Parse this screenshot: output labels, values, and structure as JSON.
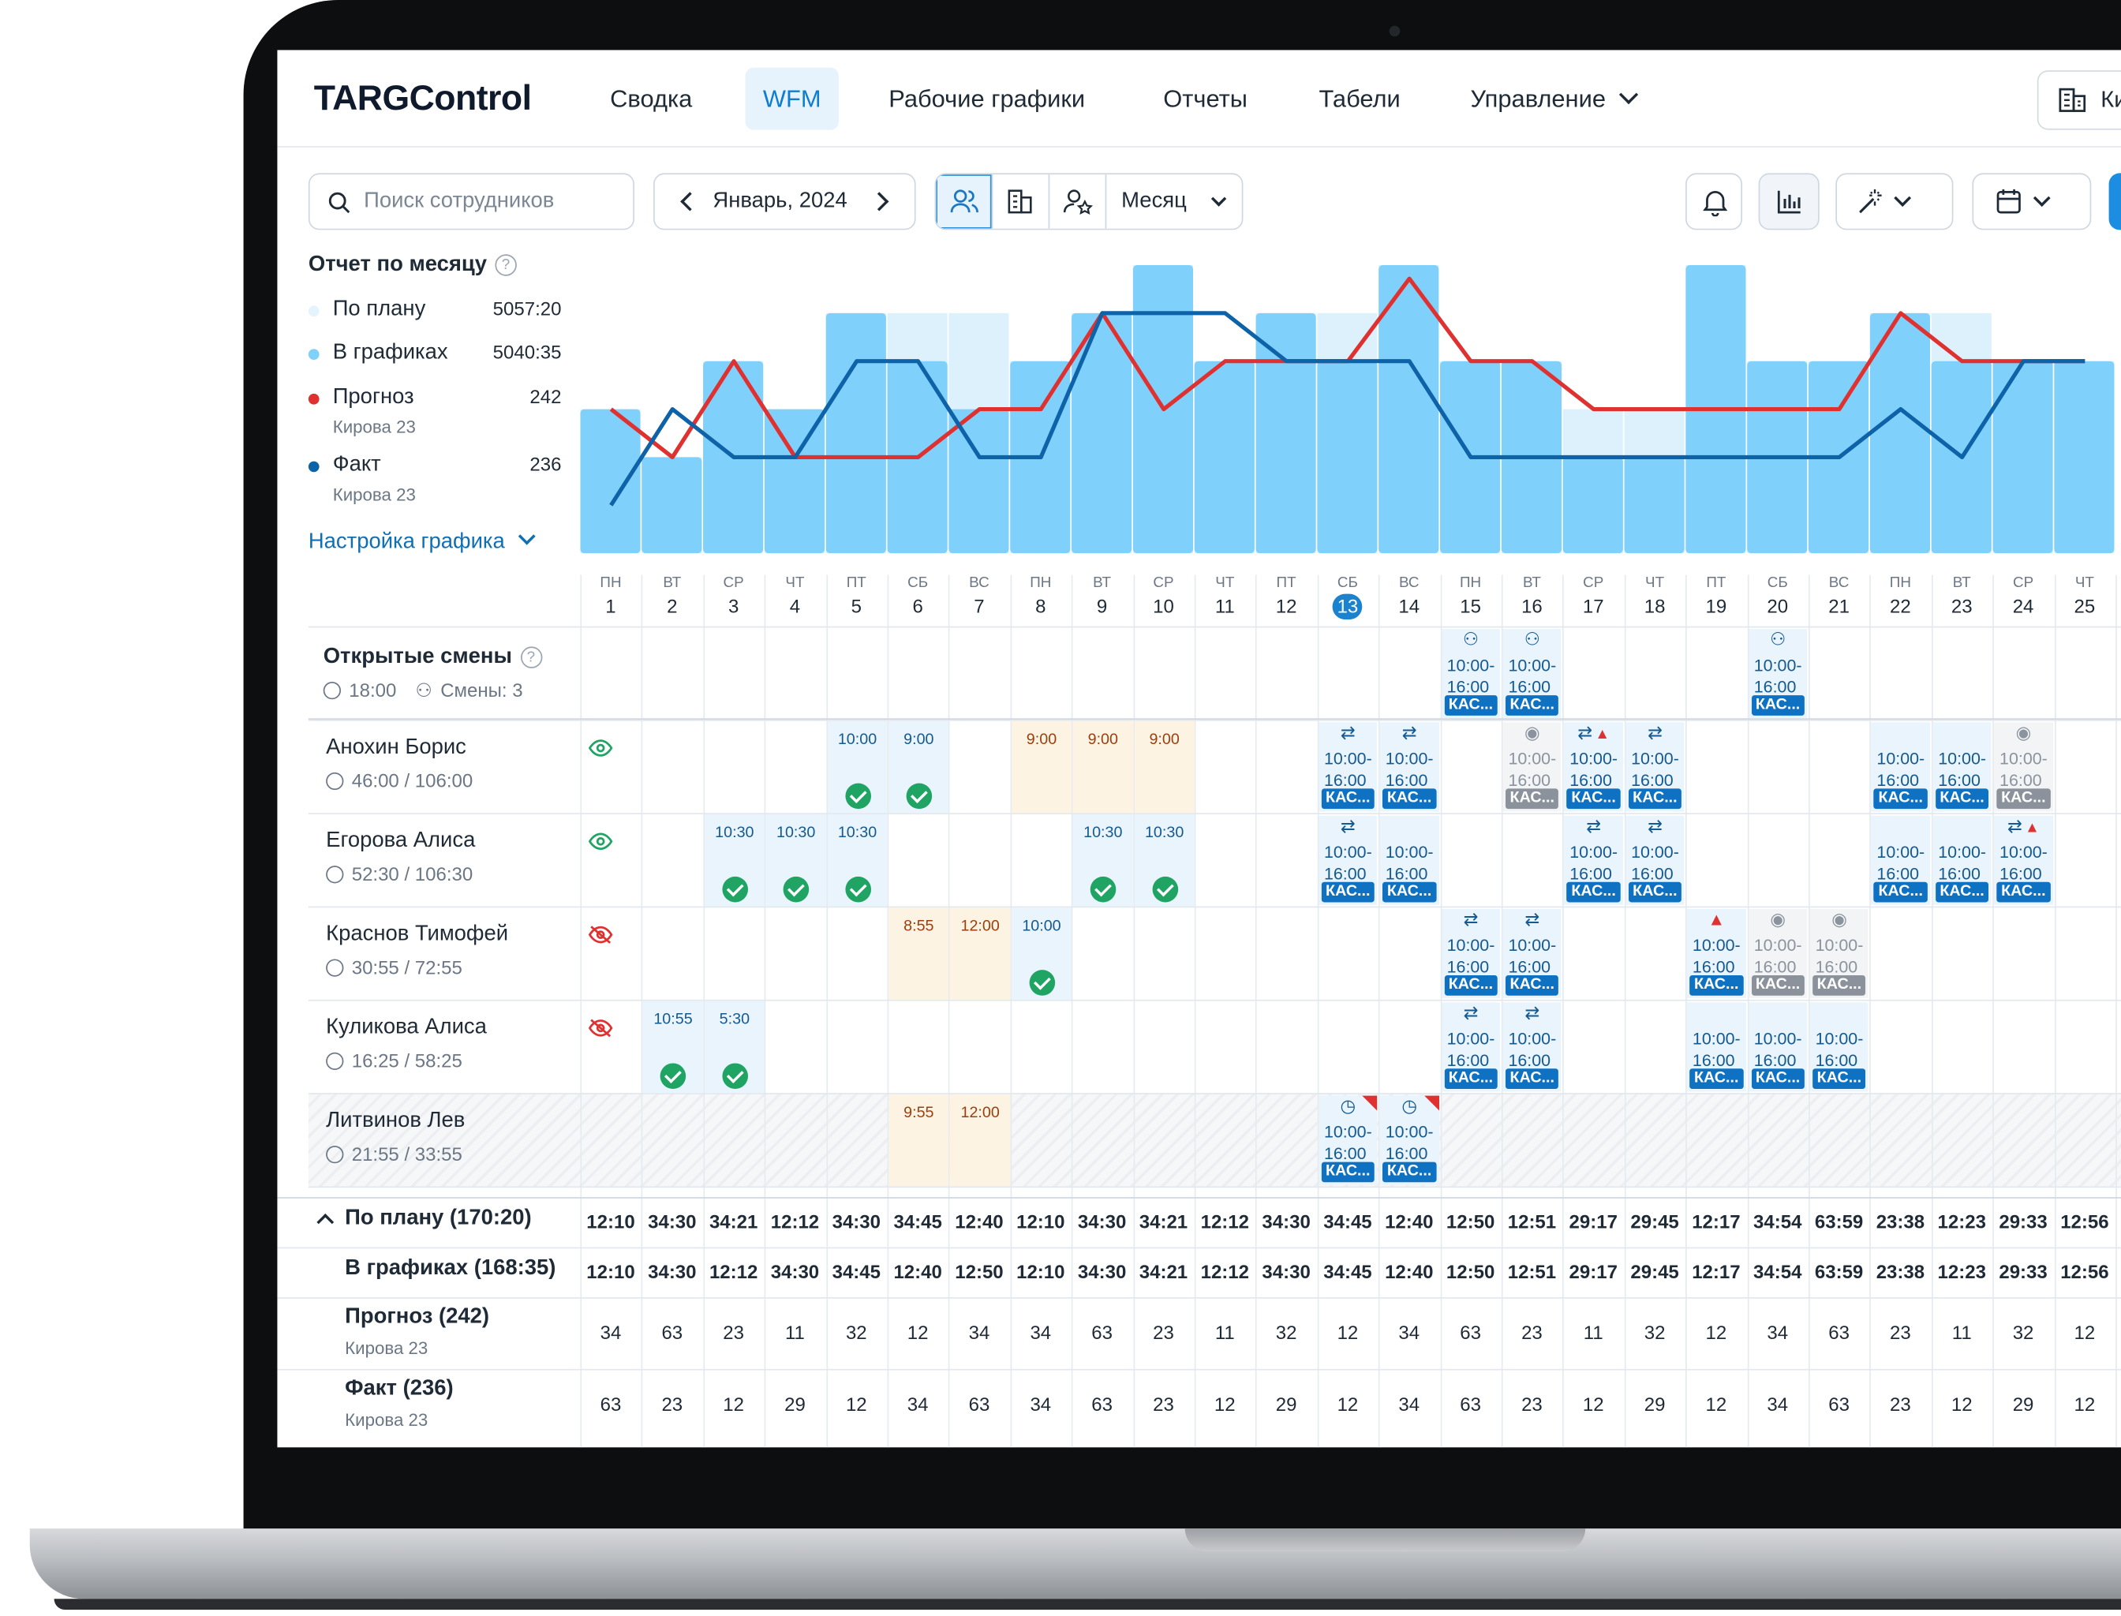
{
  "app": {
    "logo": "TARGControl"
  },
  "nav": {
    "items": [
      "Сводка",
      "WFM",
      "Рабочие графики",
      "Отчеты",
      "Табели",
      "Управление"
    ],
    "active": "WFM",
    "location_label": "Ки"
  },
  "toolbar": {
    "search_placeholder": "Поиск сотрудников",
    "period": "Январь, 2024",
    "view_mode": "Месяц"
  },
  "report": {
    "title": "Отчет по месяцу",
    "settings_link": "Настройка графика",
    "legend": [
      {
        "name": "По плану",
        "value": "5057:20",
        "color": "#e4f4fd"
      },
      {
        "name": "В графиках",
        "value": "5040:35",
        "color": "#7fd0fa"
      },
      {
        "name": "Прогноз",
        "value": "242",
        "sub": "Кирова 23",
        "color": "#e03131"
      },
      {
        "name": "Факт",
        "value": "236",
        "sub": "Кирова 23",
        "color": "#0d62a8"
      }
    ]
  },
  "chart_data": {
    "type": "bar",
    "categories": [
      "1",
      "2",
      "3",
      "4",
      "5",
      "6",
      "7",
      "8",
      "9",
      "10",
      "11",
      "12",
      "13",
      "14",
      "15",
      "16",
      "17",
      "18",
      "19",
      "20",
      "21",
      "22",
      "23",
      "24",
      "25"
    ],
    "series": [
      {
        "name": "По плану",
        "type": "bar",
        "values": [
          3,
          2,
          4,
          3,
          5,
          5,
          5,
          4,
          5,
          6,
          4,
          5,
          5,
          6,
          4,
          4,
          3,
          3,
          6,
          4,
          4,
          5,
          5,
          4,
          4
        ]
      },
      {
        "name": "В графиках",
        "type": "bar",
        "values": [
          3,
          2,
          4,
          3,
          5,
          4,
          3,
          4,
          5,
          6,
          4,
          5,
          4,
          6,
          4,
          4,
          2,
          2,
          6,
          4,
          4,
          5,
          4,
          4,
          4
        ]
      },
      {
        "name": "Прогноз",
        "type": "line",
        "values": [
          3,
          2,
          4,
          2,
          2,
          2,
          3,
          3,
          5,
          3,
          4,
          4,
          4,
          6,
          4,
          4,
          3,
          3,
          3,
          3,
          3,
          5,
          4,
          4,
          4
        ]
      },
      {
        "name": "Факт",
        "type": "line",
        "values": [
          1,
          3,
          2,
          2,
          4,
          4,
          2,
          2,
          5,
          5,
          5,
          4,
          4,
          4,
          2,
          2,
          2,
          2,
          2,
          2,
          2,
          3,
          2,
          4,
          4
        ]
      }
    ],
    "ylim": [
      0,
      6
    ]
  },
  "days": [
    {
      "dw": "ПН",
      "d": "1"
    },
    {
      "dw": "ВТ",
      "d": "2"
    },
    {
      "dw": "СР",
      "d": "3"
    },
    {
      "dw": "ЧТ",
      "d": "4"
    },
    {
      "dw": "ПТ",
      "d": "5"
    },
    {
      "dw": "СБ",
      "d": "6"
    },
    {
      "dw": "ВС",
      "d": "7"
    },
    {
      "dw": "ПН",
      "d": "8"
    },
    {
      "dw": "ВТ",
      "d": "9"
    },
    {
      "dw": "СР",
      "d": "10"
    },
    {
      "dw": "ЧТ",
      "d": "11"
    },
    {
      "dw": "ПТ",
      "d": "12"
    },
    {
      "dw": "СБ",
      "d": "13"
    },
    {
      "dw": "ВС",
      "d": "14"
    },
    {
      "dw": "ПН",
      "d": "15"
    },
    {
      "dw": "ВТ",
      "d": "16"
    },
    {
      "dw": "СР",
      "d": "17"
    },
    {
      "dw": "ЧТ",
      "d": "18"
    },
    {
      "dw": "ПТ",
      "d": "19"
    },
    {
      "dw": "СБ",
      "d": "20"
    },
    {
      "dw": "ВС",
      "d": "21"
    },
    {
      "dw": "ПН",
      "d": "22"
    },
    {
      "dw": "ВТ",
      "d": "23"
    },
    {
      "dw": "СР",
      "d": "24"
    },
    {
      "dw": "ЧТ",
      "d": "25"
    }
  ],
  "today": "13",
  "open_shifts": {
    "title": "Открытые смены",
    "time": "18:00",
    "count_label": "Смены: 3"
  },
  "employees": [
    {
      "name": "Анохин Борис",
      "hours": "46:00 / 106:00",
      "visible": true
    },
    {
      "name": "Егорова Алиса",
      "hours": "52:30 / 106:30",
      "visible": true
    },
    {
      "name": "Краснов Тимофей",
      "hours": "30:55 / 72:55",
      "visible": false
    },
    {
      "name": "Куликова Алиса",
      "hours": "16:25 / 58:25",
      "visible": false
    },
    {
      "name": "Литвинов Лев",
      "hours": "21:55 / 33:55",
      "visible": null
    }
  ],
  "shift_text": {
    "start": "10:00-",
    "end": "16:00",
    "tag": "КАС..."
  },
  "totals": {
    "plan": {
      "label": "По плану (170:20)",
      "values": [
        "12:10",
        "34:30",
        "34:21",
        "12:12",
        "34:30",
        "34:45",
        "12:40",
        "12:10",
        "34:30",
        "34:21",
        "12:12",
        "34:30",
        "34:45",
        "12:40",
        "12:50",
        "12:51",
        "29:17",
        "29:45",
        "12:17",
        "34:54",
        "63:59",
        "23:38",
        "12:23",
        "29:33",
        "12:56"
      ]
    },
    "in_schedules": {
      "label": "В графиках (168:35)",
      "values": [
        "12:10",
        "34:30",
        "12:12",
        "34:30",
        "34:45",
        "12:40",
        "12:50",
        "12:10",
        "34:30",
        "34:21",
        "12:12",
        "34:30",
        "34:45",
        "12:40",
        "12:50",
        "12:51",
        "29:17",
        "29:45",
        "12:17",
        "34:54",
        "63:59",
        "23:38",
        "12:23",
        "29:33",
        "12:56"
      ]
    },
    "forecast": {
      "label": "Прогноз (242)",
      "sub": "Кирова 23",
      "values": [
        "34",
        "63",
        "23",
        "11",
        "32",
        "12",
        "34",
        "34",
        "63",
        "23",
        "11",
        "32",
        "12",
        "34",
        "63",
        "23",
        "11",
        "32",
        "12",
        "34",
        "63",
        "23",
        "11",
        "32",
        "12"
      ]
    },
    "fact": {
      "label": "Факт (236)",
      "sub": "Кирова 23",
      "values": [
        "63",
        "23",
        "12",
        "29",
        "12",
        "34",
        "63",
        "34",
        "63",
        "23",
        "12",
        "29",
        "12",
        "34",
        "63",
        "23",
        "12",
        "29",
        "12",
        "34",
        "63",
        "23",
        "12",
        "29",
        "12"
      ]
    }
  },
  "cells": [
    {
      "row": 0,
      "day": 5,
      "kind": "blue",
      "time": "10:00",
      "check": true
    },
    {
      "row": 0,
      "day": 6,
      "kind": "blue",
      "time": "9:00",
      "check": true
    },
    {
      "row": 0,
      "day": 8,
      "kind": "peach",
      "time": "9:00"
    },
    {
      "row": 0,
      "day": 9,
      "kind": "peach",
      "time": "9:00"
    },
    {
      "row": 0,
      "day": 10,
      "kind": "peach",
      "time": "9:00"
    },
    {
      "row": 1,
      "day": 3,
      "kind": "blue",
      "time": "10:30",
      "check": true
    },
    {
      "row": 1,
      "day": 4,
      "kind": "blue",
      "time": "10:30",
      "check": true
    },
    {
      "row": 1,
      "day": 5,
      "kind": "blue",
      "time": "10:30",
      "check": true
    },
    {
      "row": 1,
      "day": 9,
      "kind": "blue",
      "time": "10:30",
      "check": true
    },
    {
      "row": 1,
      "day": 10,
      "kind": "blue",
      "time": "10:30",
      "check": true
    },
    {
      "row": 2,
      "day": 6,
      "kind": "peach",
      "time": "8:55"
    },
    {
      "row": 2,
      "day": 7,
      "kind": "peach",
      "time": "12:00"
    },
    {
      "row": 2,
      "day": 8,
      "kind": "blue",
      "time": "10:00",
      "check": true
    },
    {
      "row": 3,
      "day": 2,
      "kind": "blue",
      "time": "10:55",
      "check": true
    },
    {
      "row": 3,
      "day": 3,
      "kind": "blue",
      "time": "5:30",
      "check": true
    },
    {
      "row": 4,
      "day": 6,
      "kind": "peach",
      "time": "9:55"
    },
    {
      "row": 4,
      "day": 7,
      "kind": "peach",
      "time": "12:00"
    }
  ],
  "shifts": [
    {
      "row": -1,
      "day": 15,
      "icon": "person-x-icon"
    },
    {
      "row": -1,
      "day": 16,
      "icon": "person-x-icon"
    },
    {
      "row": -1,
      "day": 20,
      "icon": "person-x-icon"
    },
    {
      "row": 0,
      "day": 13,
      "icon": "swap-icon"
    },
    {
      "row": 0,
      "day": 14,
      "icon": "swap-icon"
    },
    {
      "row": 0,
      "day": 16,
      "icon": "eye-person-icon",
      "gray": true
    },
    {
      "row": 0,
      "day": 17,
      "icon": "swap-warning-icon"
    },
    {
      "row": 0,
      "day": 18,
      "icon": "swap-icon"
    },
    {
      "row": 0,
      "day": 22,
      "icon": ""
    },
    {
      "row": 0,
      "day": 23,
      "icon": ""
    },
    {
      "row": 0,
      "day": 24,
      "icon": "eye-person-icon",
      "gray": true
    },
    {
      "row": 1,
      "day": 13,
      "icon": "swap-icon"
    },
    {
      "row": 1,
      "day": 14,
      "icon": ""
    },
    {
      "row": 1,
      "day": 17,
      "icon": "swap-icon"
    },
    {
      "row": 1,
      "day": 18,
      "icon": "swap-icon"
    },
    {
      "row": 1,
      "day": 22,
      "icon": ""
    },
    {
      "row": 1,
      "day": 23,
      "icon": ""
    },
    {
      "row": 1,
      "day": 24,
      "icon": "swap-warning-icon"
    },
    {
      "row": 2,
      "day": 15,
      "icon": "swap-icon"
    },
    {
      "row": 2,
      "day": 16,
      "icon": "swap-icon"
    },
    {
      "row": 2,
      "day": 19,
      "icon": "warning-icon"
    },
    {
      "row": 2,
      "day": 20,
      "icon": "eye-person-icon",
      "gray": true
    },
    {
      "row": 2,
      "day": 21,
      "icon": "eye-person-icon",
      "gray": true
    },
    {
      "row": 3,
      "day": 15,
      "icon": "swap-icon"
    },
    {
      "row": 3,
      "day": 16,
      "icon": "swap-icon"
    },
    {
      "row": 3,
      "day": 19,
      "icon": ""
    },
    {
      "row": 3,
      "day": 20,
      "icon": ""
    },
    {
      "row": 3,
      "day": 21,
      "icon": ""
    },
    {
      "row": 4,
      "day": 13,
      "icon": "clock-icon",
      "corner": true
    },
    {
      "row": 4,
      "day": 14,
      "icon": "clock-icon",
      "corner": true
    }
  ]
}
